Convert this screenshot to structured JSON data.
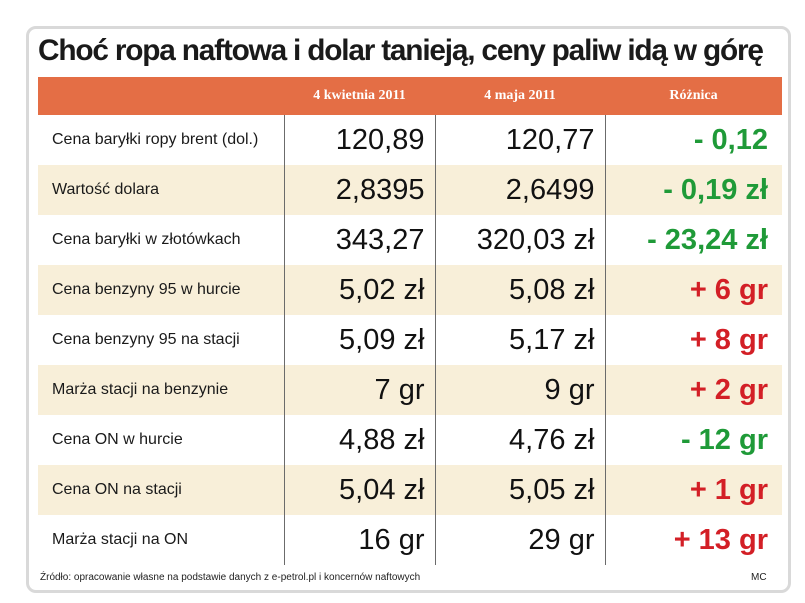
{
  "title": "Choć ropa naftowa i dolar tanieją, ceny paliw idą w górę",
  "header": {
    "col_label": "",
    "col_a": "4 kwietnia 2011",
    "col_b": "4 maja 2011",
    "col_diff": "Różnica"
  },
  "rows": [
    {
      "label": "Cena baryłki ropy brent (dol.)",
      "a": "120,89",
      "b": "120,77",
      "diff": "- 0,12",
      "sign": "neg"
    },
    {
      "label": "Wartość dolara",
      "a": "2,8395",
      "b": "2,6499",
      "diff": "- 0,19 zł",
      "sign": "neg"
    },
    {
      "label": "Cena baryłki w złotówkach",
      "a": "343,27",
      "b": "320,03 zł",
      "diff": "- 23,24 zł",
      "sign": "neg"
    },
    {
      "label": "Cena benzyny 95 w hurcie",
      "a": "5,02 zł",
      "b": "5,08 zł",
      "diff": "+ 6 gr",
      "sign": "pos"
    },
    {
      "label": "Cena benzyny 95 na stacji",
      "a": "5,09 zł",
      "b": "5,17 zł",
      "diff": "+ 8 gr",
      "sign": "pos"
    },
    {
      "label": "Marża stacji na benzynie",
      "a": "7 gr",
      "b": "9 gr",
      "diff": "+ 2 gr",
      "sign": "pos"
    },
    {
      "label": "Cena ON w hurcie",
      "a": "4,88 zł",
      "b": "4,76 zł",
      "diff": "- 12 gr",
      "sign": "neg"
    },
    {
      "label": "Cena ON na stacji",
      "a": "5,04 zł",
      "b": "5,05 zł",
      "diff": "+ 1 gr",
      "sign": "pos"
    },
    {
      "label": "Marża stacji na ON",
      "a": "16 gr",
      "b": "29 gr",
      "diff": "+ 13 gr",
      "sign": "pos"
    }
  ],
  "footer": {
    "source": "Źródło: opracowanie własne na podstawie danych z e-petrol.pl i koncernów naftowych",
    "author": "MC"
  },
  "colors": {
    "header_bg": "#e46e45",
    "row_alt_bg": "#f8efd9",
    "negative": "#1f9a38",
    "positive": "#d31f26"
  }
}
